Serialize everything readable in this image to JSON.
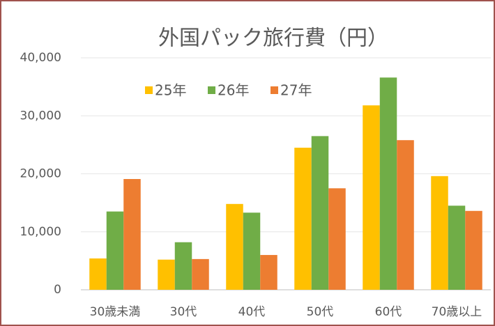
{
  "chart_data": {
    "type": "bar",
    "title": "外国パック旅行費（円）",
    "categories": [
      "30歳未満",
      "30代",
      "40代",
      "50代",
      "60代",
      "70歳以上"
    ],
    "series": [
      {
        "name": "25年",
        "color": "#ffc000",
        "values": [
          5400,
          5200,
          14800,
          24500,
          31800,
          19600
        ]
      },
      {
        "name": "26年",
        "color": "#70ad47",
        "values": [
          13500,
          8200,
          13300,
          26500,
          36600,
          14500
        ]
      },
      {
        "name": "27年",
        "color": "#ed7d31",
        "values": [
          19100,
          5300,
          6000,
          17500,
          25800,
          13600
        ]
      }
    ],
    "ylim": [
      0,
      40000
    ],
    "yticks": [
      0,
      {
        "value": 10000,
        "label": "10,000"
      },
      {
        "value": 20000,
        "label": "20,000"
      },
      {
        "value": 30000,
        "label": "30,000"
      },
      {
        "value": 40000,
        "label": "40,000"
      }
    ],
    "grid": true,
    "legend": "top"
  }
}
